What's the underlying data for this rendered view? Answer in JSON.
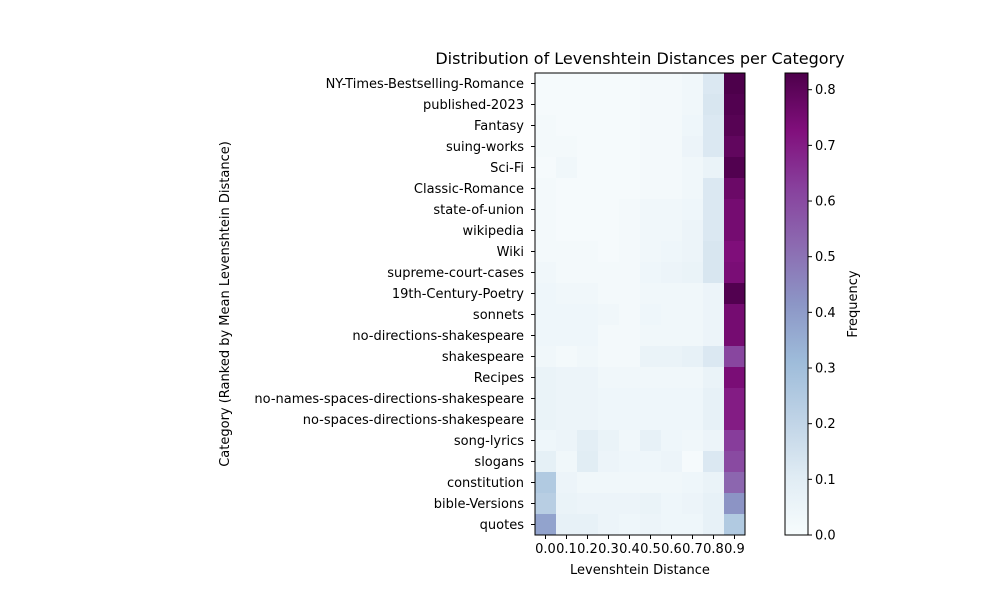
{
  "chart_data": {
    "type": "heatmap",
    "title": "Distribution of Levenshtein Distances per Category",
    "xlabel": "Levenshtein Distance",
    "ylabel": "Category (Ranked by Mean Levenshtein Distance)",
    "x_tick_labels": [
      "0.0",
      "0.1",
      "0.2",
      "0.3",
      "0.4",
      "0.5",
      "0.6",
      "0.7",
      "0.8",
      "0.9"
    ],
    "categories": [
      "NY-Times-Bestselling-Romance",
      "published-2023",
      "Fantasy",
      "suing-works",
      "Sci-Fi",
      "Classic-Romance",
      "state-of-union",
      "wikipedia",
      "Wiki",
      "supreme-court-cases",
      "19th-Century-Poetry",
      "sonnets",
      "no-directions-shakespeare",
      "shakespeare",
      "Recipes",
      "no-names-spaces-directions-shakespeare",
      "no-spaces-directions-shakespeare",
      "song-lyrics",
      "slogans",
      "constitution",
      "bible-Versions",
      "quotes"
    ],
    "values": [
      [
        0.01,
        0.01,
        0.01,
        0.01,
        0.01,
        0.02,
        0.02,
        0.03,
        0.12,
        0.83
      ],
      [
        0.01,
        0.01,
        0.01,
        0.01,
        0.01,
        0.02,
        0.02,
        0.03,
        0.13,
        0.82
      ],
      [
        0.02,
        0.01,
        0.01,
        0.01,
        0.01,
        0.02,
        0.02,
        0.04,
        0.12,
        0.81
      ],
      [
        0.02,
        0.02,
        0.01,
        0.01,
        0.01,
        0.02,
        0.02,
        0.05,
        0.12,
        0.79
      ],
      [
        0.01,
        0.03,
        0.01,
        0.01,
        0.01,
        0.02,
        0.02,
        0.03,
        0.06,
        0.82
      ],
      [
        0.02,
        0.01,
        0.01,
        0.01,
        0.01,
        0.02,
        0.02,
        0.03,
        0.12,
        0.77
      ],
      [
        0.02,
        0.01,
        0.01,
        0.01,
        0.02,
        0.03,
        0.03,
        0.04,
        0.12,
        0.75
      ],
      [
        0.02,
        0.01,
        0.01,
        0.01,
        0.02,
        0.03,
        0.03,
        0.05,
        0.12,
        0.75
      ],
      [
        0.02,
        0.02,
        0.02,
        0.01,
        0.02,
        0.03,
        0.04,
        0.05,
        0.13,
        0.73
      ],
      [
        0.03,
        0.02,
        0.02,
        0.02,
        0.02,
        0.04,
        0.05,
        0.06,
        0.13,
        0.74
      ],
      [
        0.04,
        0.03,
        0.03,
        0.02,
        0.02,
        0.03,
        0.03,
        0.03,
        0.05,
        0.82
      ],
      [
        0.04,
        0.04,
        0.04,
        0.03,
        0.02,
        0.04,
        0.03,
        0.03,
        0.05,
        0.75
      ],
      [
        0.04,
        0.04,
        0.04,
        0.02,
        0.02,
        0.03,
        0.03,
        0.03,
        0.05,
        0.75
      ],
      [
        0.03,
        0.02,
        0.03,
        0.02,
        0.02,
        0.06,
        0.06,
        0.07,
        0.12,
        0.61
      ],
      [
        0.06,
        0.05,
        0.05,
        0.03,
        0.03,
        0.03,
        0.03,
        0.03,
        0.06,
        0.74
      ],
      [
        0.06,
        0.05,
        0.05,
        0.04,
        0.04,
        0.04,
        0.04,
        0.04,
        0.07,
        0.7
      ],
      [
        0.06,
        0.05,
        0.05,
        0.04,
        0.04,
        0.04,
        0.04,
        0.04,
        0.07,
        0.7
      ],
      [
        0.04,
        0.05,
        0.09,
        0.06,
        0.03,
        0.07,
        0.04,
        0.03,
        0.05,
        0.63
      ],
      [
        0.08,
        0.03,
        0.1,
        0.05,
        0.04,
        0.04,
        0.05,
        0.01,
        0.12,
        0.6
      ],
      [
        0.25,
        0.05,
        0.03,
        0.03,
        0.03,
        0.03,
        0.03,
        0.04,
        0.06,
        0.53
      ],
      [
        0.23,
        0.06,
        0.05,
        0.05,
        0.05,
        0.06,
        0.04,
        0.05,
        0.07,
        0.42
      ],
      [
        0.38,
        0.07,
        0.07,
        0.05,
        0.04,
        0.05,
        0.04,
        0.04,
        0.07,
        0.25
      ]
    ],
    "colorbar": {
      "label": "Frequency",
      "range": [
        0,
        0.83
      ],
      "ticks": [
        "0.0",
        "0.1",
        "0.2",
        "0.3",
        "0.4",
        "0.5",
        "0.6",
        "0.7",
        "0.8"
      ],
      "colormap": "BuPu",
      "colors": [
        "#f7fcfd",
        "#e0ecf4",
        "#bfd3e6",
        "#9ebcda",
        "#8c96c6",
        "#8c6bb1",
        "#88419d",
        "#810f7c",
        "#4d004b"
      ]
    }
  }
}
